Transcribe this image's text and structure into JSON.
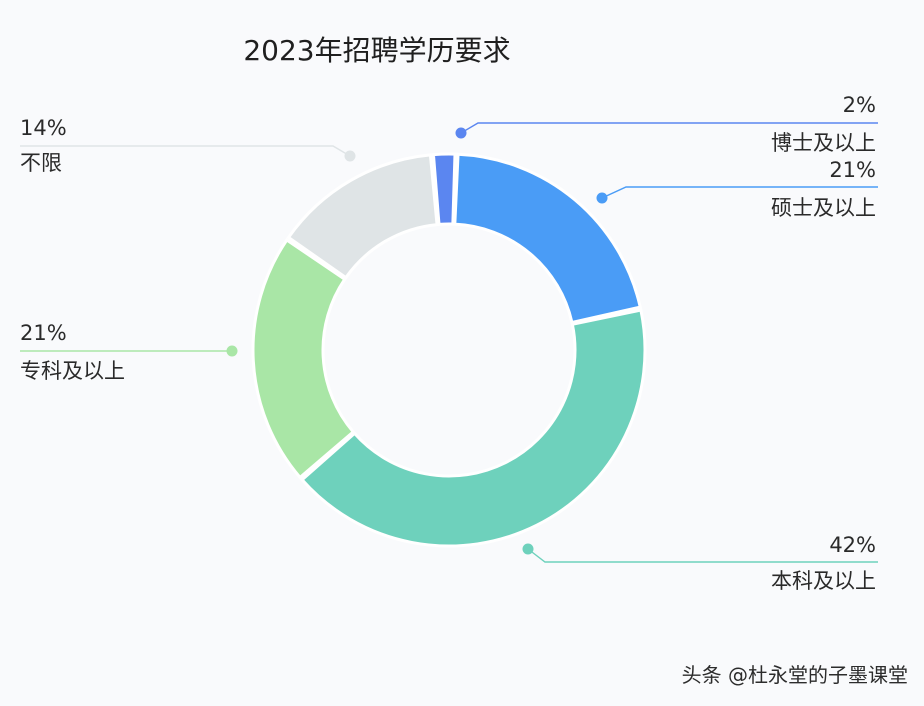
{
  "chart_data": {
    "type": "pie",
    "variant": "donut",
    "title": "2023年招聘学历要求",
    "start_angle_deg": -5,
    "clockwise": true,
    "slices": [
      {
        "label": "博士及以上",
        "value": 2,
        "value_label": "2%",
        "color": "#5b86f0",
        "label_side": "right"
      },
      {
        "label": "硕士及以上",
        "value": 21,
        "value_label": "21%",
        "color": "#4a9cf6",
        "label_side": "right"
      },
      {
        "label": "本科及以上",
        "value": 42,
        "value_label": "42%",
        "color": "#6ed1bc",
        "label_side": "right"
      },
      {
        "label": "专科及以上",
        "value": 21,
        "value_label": "21%",
        "color": "#a9e6a6",
        "label_side": "left"
      },
      {
        "label": "不限",
        "value": 14,
        "value_label": "14%",
        "color": "#dfe4e6",
        "label_side": "left"
      }
    ]
  },
  "watermark": "头条 @杜永堂的子墨课堂"
}
